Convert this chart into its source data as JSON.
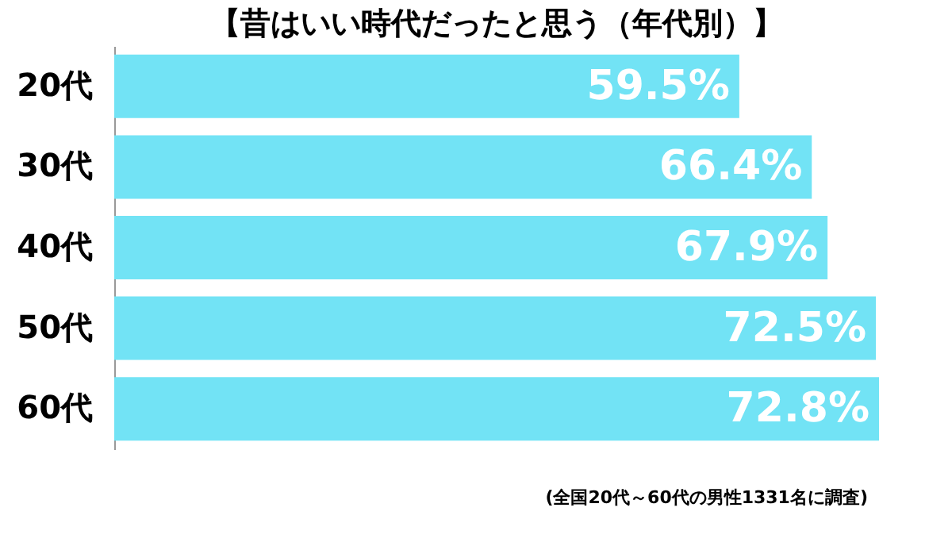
{
  "chart_data": {
    "type": "bar",
    "orientation": "horizontal",
    "title": "【昔はいい時代だったと思う（年代別）】",
    "categories": [
      "20代",
      "30代",
      "40代",
      "50代",
      "60代"
    ],
    "values": [
      59.5,
      66.4,
      67.9,
      72.5,
      72.8
    ],
    "value_labels": [
      "59.5%",
      "66.4%",
      "67.9%",
      "72.5%",
      "72.8%"
    ],
    "color": "#72e3f5",
    "annotations": [
      "(全国20代～60代の男性1331名に調査)"
    ]
  }
}
